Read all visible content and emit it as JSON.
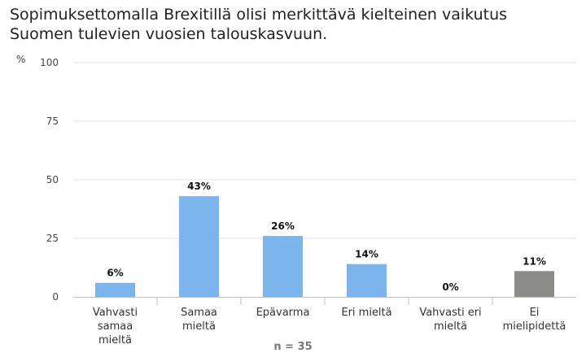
{
  "chart_data": {
    "type": "bar",
    "title": "Sopimuksettomalla Brexitillä olisi merkittävä kielteinen vaikutus\nSuomen tulevien vuosien talouskasvuun.",
    "ylabel": "%",
    "ylim": [
      0,
      100
    ],
    "yticks": [
      0,
      25,
      50,
      75,
      100
    ],
    "categories": [
      "Vahvasti samaa mieltä",
      "Samaa mieltä",
      "Epävarma",
      "Eri mieltä",
      "Vahvasti eri mieltä",
      "Ei mielipidettä"
    ],
    "category_lines": [
      [
        "Vahvasti",
        "samaa",
        "mieltä"
      ],
      [
        "Samaa",
        "mieltä"
      ],
      [
        "Epävarma"
      ],
      [
        "Eri mieltä"
      ],
      [
        "Vahvasti eri",
        "mieltä"
      ],
      [
        "Ei",
        "mielipidettä"
      ]
    ],
    "values": [
      6,
      43,
      26,
      14,
      0,
      11
    ],
    "data_labels": [
      "6%",
      "43%",
      "26%",
      "14%",
      "0%",
      "11%"
    ],
    "colors": [
      "#7cb5ec",
      "#7cb5ec",
      "#7cb5ec",
      "#7cb5ec",
      "#7cb5ec",
      "#8c8c88"
    ],
    "grid": true,
    "note": "n = 35"
  }
}
